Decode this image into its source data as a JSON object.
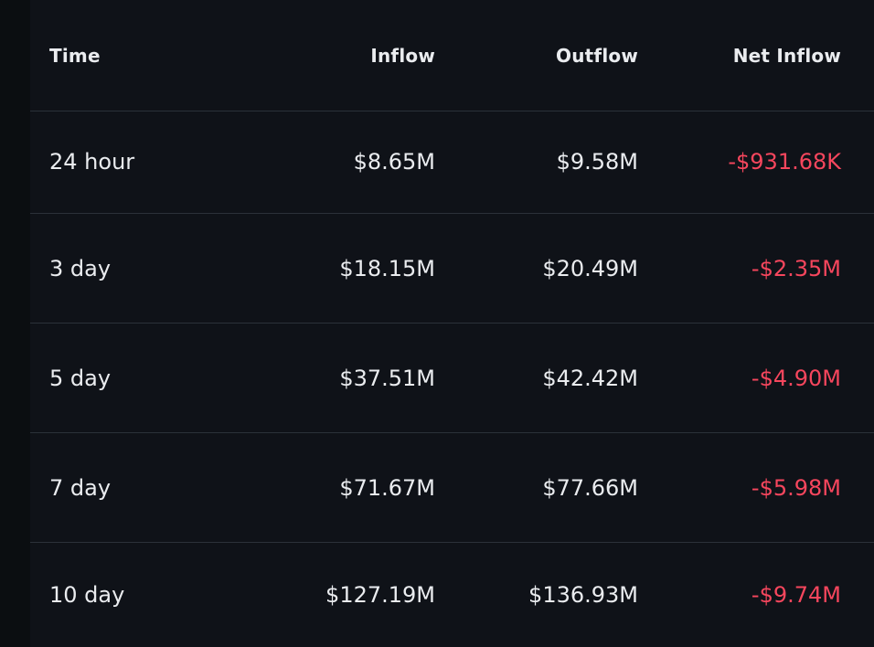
{
  "table": {
    "headers": {
      "time": "Time",
      "inflow": "Inflow",
      "outflow": "Outflow",
      "net_inflow": "Net Inflow"
    },
    "rows": [
      {
        "time": "24 hour",
        "inflow": "$8.65M",
        "outflow": "$9.58M",
        "net_inflow": "-$931.68K"
      },
      {
        "time": "3 day",
        "inflow": "$18.15M",
        "outflow": "$20.49M",
        "net_inflow": "-$2.35M"
      },
      {
        "time": "5 day",
        "inflow": "$37.51M",
        "outflow": "$42.42M",
        "net_inflow": "-$4.90M"
      },
      {
        "time": "7 day",
        "inflow": "$71.67M",
        "outflow": "$77.66M",
        "net_inflow": "-$5.98M"
      },
      {
        "time": "10 day",
        "inflow": "$127.19M",
        "outflow": "$136.93M",
        "net_inflow": "-$9.74M"
      }
    ]
  },
  "colors": {
    "background": "#0b0e11",
    "panel": "#0f1218",
    "text": "#eaecef",
    "negative": "#f6465d",
    "divider": "#2b3139"
  }
}
